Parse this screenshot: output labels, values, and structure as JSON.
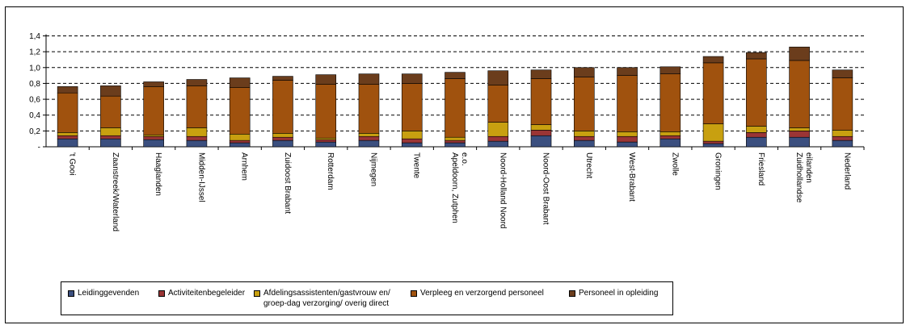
{
  "chart_data": {
    "type": "bar",
    "stacked": true,
    "categories": [
      "'t Gooi",
      "Zaanstreek/Waterland",
      "Haaglanden",
      "Midden-IJssel",
      "Arnhem",
      "Zuidoost Brabant",
      "Rotterdam",
      "Nijmegen",
      "Twente",
      "Apeldoorn, Zutphen e.o.",
      "Noord-Holland Noord",
      "Noord-Oost Brabant",
      "Utrecht",
      "West-Brabant",
      "Zwolle",
      "Groningen",
      "Friesland",
      "Zuidhollandse eilanden",
      "Nederland"
    ],
    "series": [
      {
        "name": "Leidinggevenden",
        "color": "#3b4f7f",
        "values": [
          0.1,
          0.1,
          0.09,
          0.08,
          0.05,
          0.08,
          0.06,
          0.08,
          0.05,
          0.05,
          0.07,
          0.14,
          0.08,
          0.06,
          0.1,
          0.04,
          0.12,
          0.12,
          0.08
        ]
      },
      {
        "name": "Activiteitenbegeleider",
        "color": "#9b3535",
        "values": [
          0.04,
          0.04,
          0.04,
          0.05,
          0.03,
          0.04,
          0.03,
          0.05,
          0.05,
          0.03,
          0.06,
          0.07,
          0.05,
          0.07,
          0.04,
          0.03,
          0.06,
          0.08,
          0.05
        ]
      },
      {
        "name": "Afdelingsassistenten/gastvrouw en/\ngroep-dag verzorging/ overig direct",
        "color": "#c8a010",
        "values": [
          0.04,
          0.1,
          0.02,
          0.11,
          0.08,
          0.05,
          0.02,
          0.04,
          0.1,
          0.04,
          0.18,
          0.07,
          0.07,
          0.06,
          0.05,
          0.22,
          0.08,
          0.04,
          0.08
        ]
      },
      {
        "name": "Verpleeg en verzorgend personeel",
        "color": "#a0520e",
        "values": [
          0.5,
          0.4,
          0.61,
          0.53,
          0.59,
          0.67,
          0.68,
          0.62,
          0.6,
          0.74,
          0.47,
          0.58,
          0.68,
          0.71,
          0.73,
          0.77,
          0.85,
          0.85,
          0.66
        ]
      },
      {
        "name": "Personeel in opleiding",
        "color": "#6b3d1c",
        "values": [
          0.08,
          0.13,
          0.06,
          0.08,
          0.12,
          0.05,
          0.12,
          0.13,
          0.12,
          0.08,
          0.18,
          0.11,
          0.12,
          0.1,
          0.09,
          0.08,
          0.08,
          0.17,
          0.1
        ]
      }
    ],
    "y_ticks": [
      "-",
      "0,2",
      "0,4",
      "0,6",
      "0,8",
      "1,0",
      "1,2",
      "1,4"
    ],
    "ylim": [
      0,
      1.4
    ],
    "grid": true,
    "legend_position": "bottom"
  }
}
